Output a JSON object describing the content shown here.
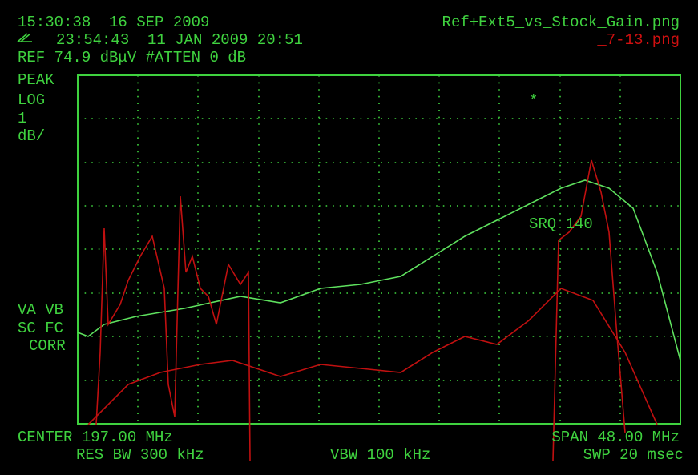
{
  "header": {
    "time": "15:30:38  16 SEP 2009",
    "timestamp": "23:54:43  11 JAN 2009 20:51",
    "ref": "REF 74.9 dBμV #ATTEN 0 dB"
  },
  "legend": {
    "file1": "Ref+Ext5_vs_Stock_Gain.png",
    "file2": "_7-13.png"
  },
  "left": {
    "mode": "PEAK",
    "scale": "LOG",
    "per": "1",
    "unit": "dB/",
    "line1": "VA VB",
    "line2": "SC FC",
    "line3": "CORR"
  },
  "screen": {
    "marker": "*",
    "srq": "SRQ 140"
  },
  "footer": {
    "center": "CENTER 197.00 MHz",
    "span": "SPAN 48.00 MHz",
    "rbw": "RES BW 300 kHz",
    "vbw": "VBW 100 kHz",
    "swp": "SWP 20 msec"
  }
}
